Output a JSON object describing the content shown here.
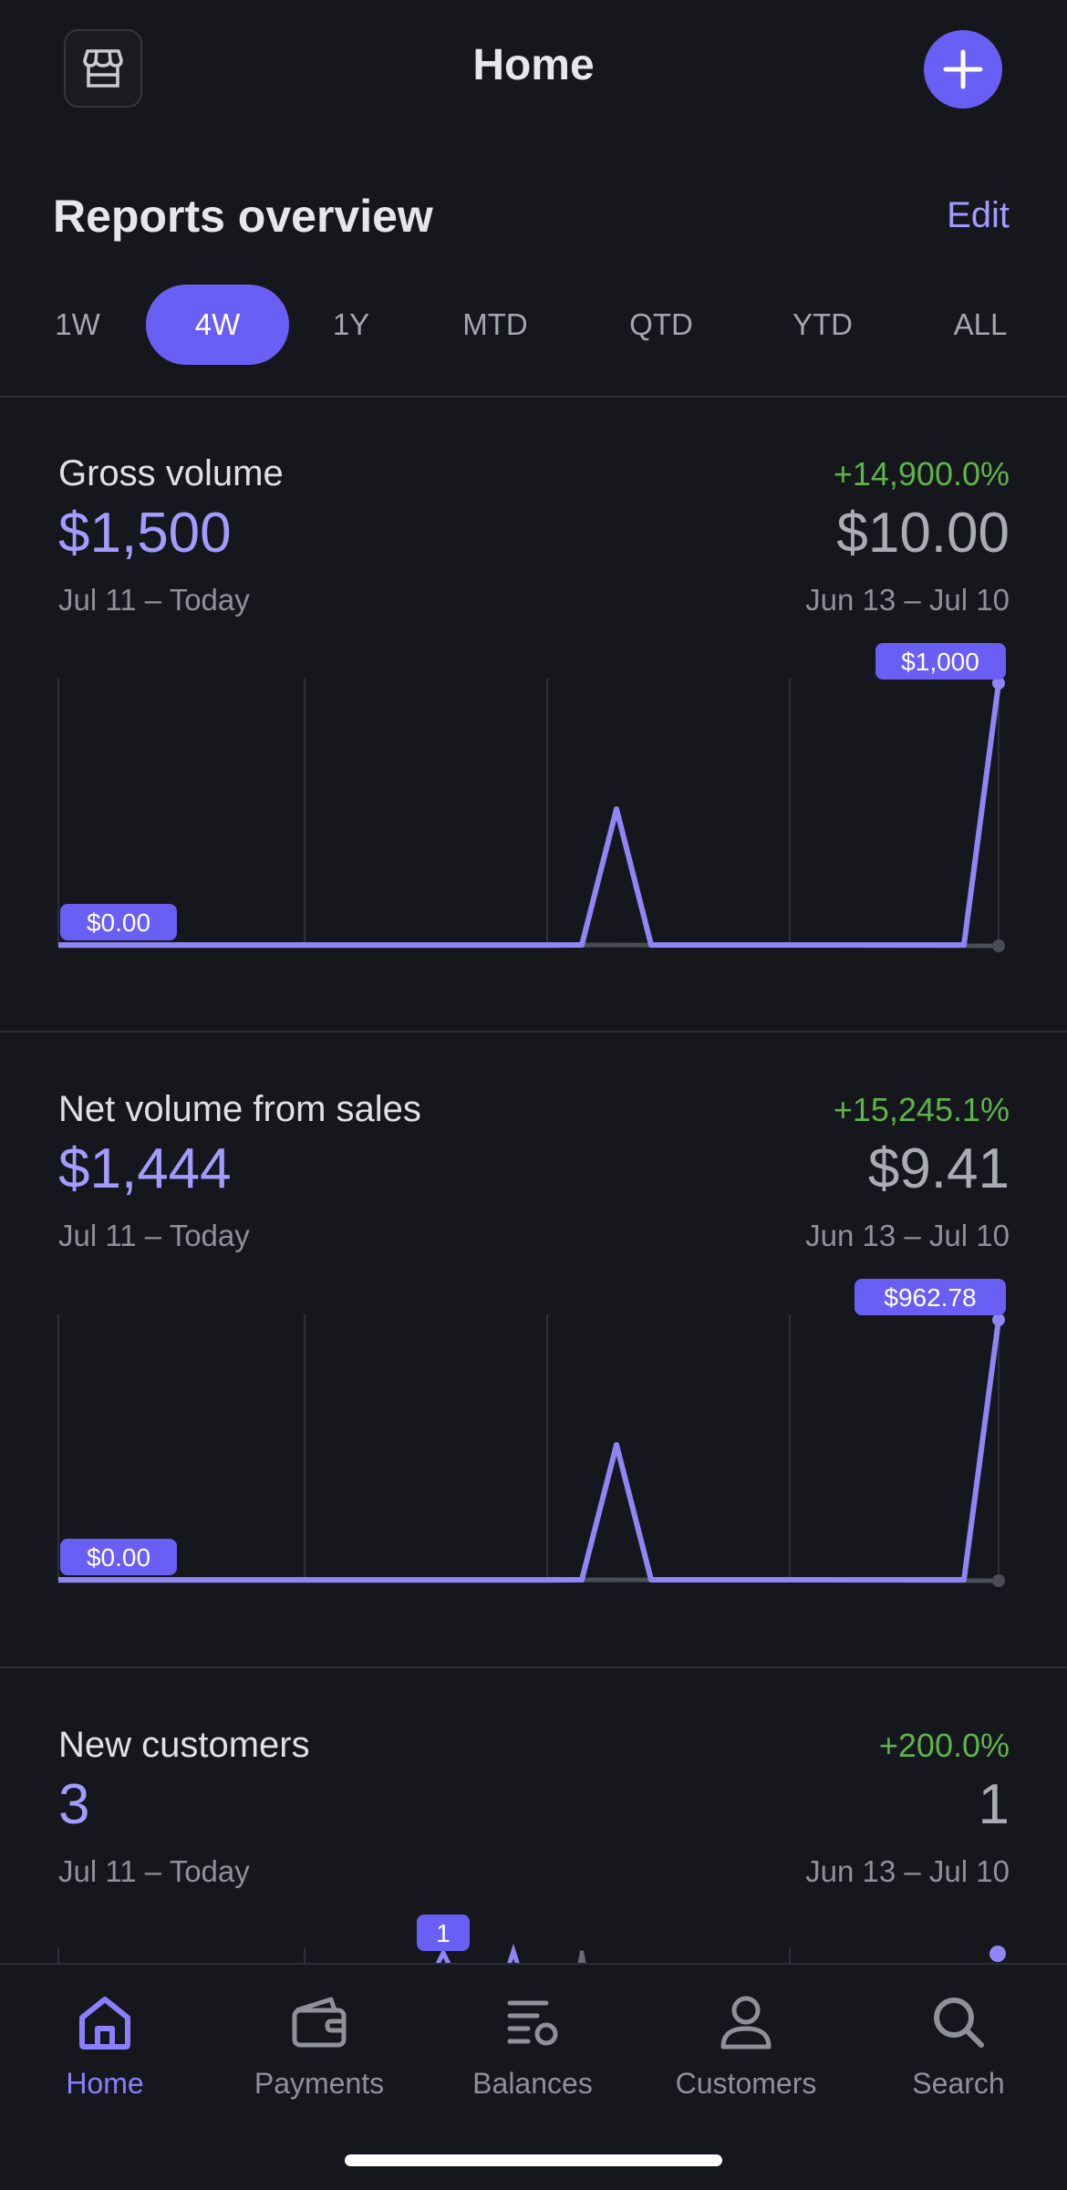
{
  "header": {
    "title": "Home",
    "store_icon": "storefront-icon",
    "add_icon": "plus-icon"
  },
  "reports": {
    "title": "Reports overview",
    "edit_label": "Edit",
    "ranges": [
      "1W",
      "4W",
      "1Y",
      "MTD",
      "QTD",
      "YTD",
      "ALL"
    ],
    "active_range": "4W"
  },
  "cards": [
    {
      "title": "Gross volume",
      "change": "+14,900.0%",
      "value": "$1,500",
      "period": "Jul 11 – Today",
      "prev_value": "$10.00",
      "prev_period": "Jun 13 – Jul 10",
      "chart": {
        "min_label": "$0.00",
        "max_label": "$1,000"
      }
    },
    {
      "title": "Net volume from sales",
      "change": "+15,245.1%",
      "value": "$1,444",
      "period": "Jul 11 – Today",
      "prev_value": "$9.41",
      "prev_period": "Jun 13 – Jul 10",
      "chart": {
        "min_label": "$0.00",
        "max_label": "$962.78"
      }
    },
    {
      "title": "New customers",
      "change": "+200.0%",
      "value": "3",
      "period": "Jul 11 – Today",
      "prev_value": "1",
      "prev_period": "Jun 13 – Jul 10",
      "chart": {
        "max_label": "1"
      }
    }
  ],
  "tabbar": {
    "items": [
      {
        "label": "Home",
        "icon": "home-icon",
        "active": true
      },
      {
        "label": "Payments",
        "icon": "wallet-icon",
        "active": false
      },
      {
        "label": "Balances",
        "icon": "balances-icon",
        "active": false
      },
      {
        "label": "Customers",
        "icon": "person-icon",
        "active": false
      },
      {
        "label": "Search",
        "icon": "search-icon",
        "active": false
      }
    ]
  },
  "colors": {
    "background": "#15171d",
    "accent": "#6a5ff5",
    "accent_text": "#a39bff",
    "positive": "#5fb34a",
    "muted": "#8e919a"
  }
}
